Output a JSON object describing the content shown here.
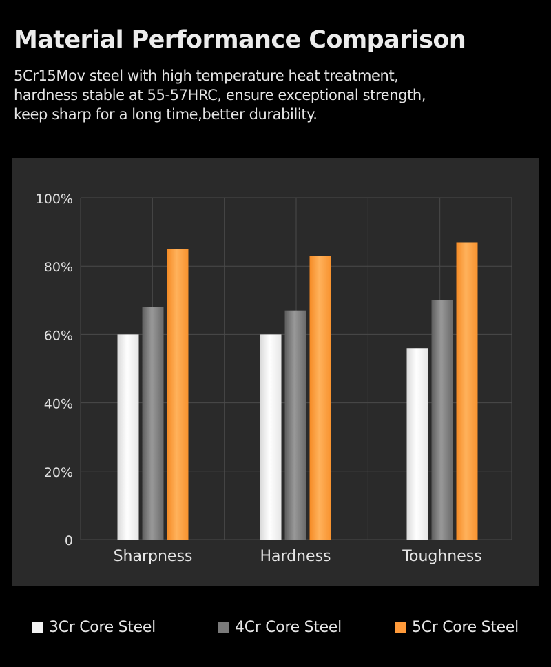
{
  "header": {
    "title": "Material Performance Comparison",
    "description_lines": [
      "5Cr15Mov steel with high temperature heat treatment,",
      "hardness stable at 55-57HRC, ensure exceptional strength,",
      "keep sharp for a long time,better durability."
    ]
  },
  "colors": {
    "background": "#000000",
    "panel": "#2a2a2a",
    "grid": "#4a4a4a",
    "series_3cr": "#f2f2f2",
    "series_4cr": "#7a7a7a",
    "series_5cr": "#ff9a3a"
  },
  "chart_data": {
    "type": "bar",
    "title": "",
    "xlabel": "",
    "ylabel": "",
    "categories": [
      "Sharpness",
      "Hardness",
      "Toughness"
    ],
    "series": [
      {
        "name": "3Cr Core Steel",
        "values": [
          60,
          60,
          56
        ]
      },
      {
        "name": "4Cr Core Steel",
        "values": [
          68,
          67,
          70
        ]
      },
      {
        "name": "5Cr Core Steel",
        "values": [
          85,
          83,
          87
        ]
      }
    ],
    "ylim": [
      0,
      100
    ],
    "yticks": [
      0,
      20,
      40,
      60,
      80,
      100
    ],
    "ytick_labels": [
      "0",
      "20%",
      "40%",
      "60%",
      "80%",
      "100%"
    ],
    "grid": true,
    "legend": "bottom"
  }
}
